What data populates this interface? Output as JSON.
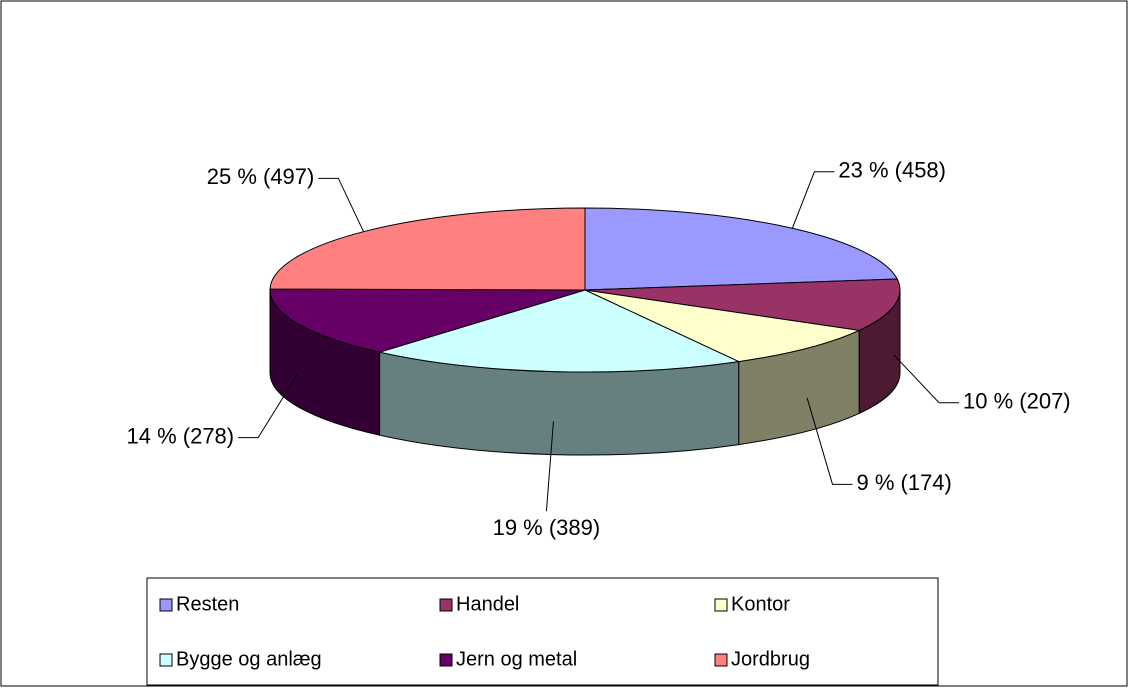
{
  "chart_data": {
    "type": "pie",
    "categories": [
      "Resten",
      "Handel",
      "Kontor",
      "Bygge og anlæg",
      "Jern og metal",
      "Jordbrug"
    ],
    "values": [
      458,
      207,
      174,
      389,
      278,
      497
    ],
    "value_labels": [
      "23 % (458)",
      "10 % (207)",
      "9 % (174)",
      "19 % (389)",
      "14 % (278)",
      "25 % (497)"
    ],
    "colors": [
      "#9999ff",
      "#993366",
      "#ffffcc",
      "#ccffff",
      "#660066",
      "#ff8080"
    ],
    "legend": "bottom"
  }
}
